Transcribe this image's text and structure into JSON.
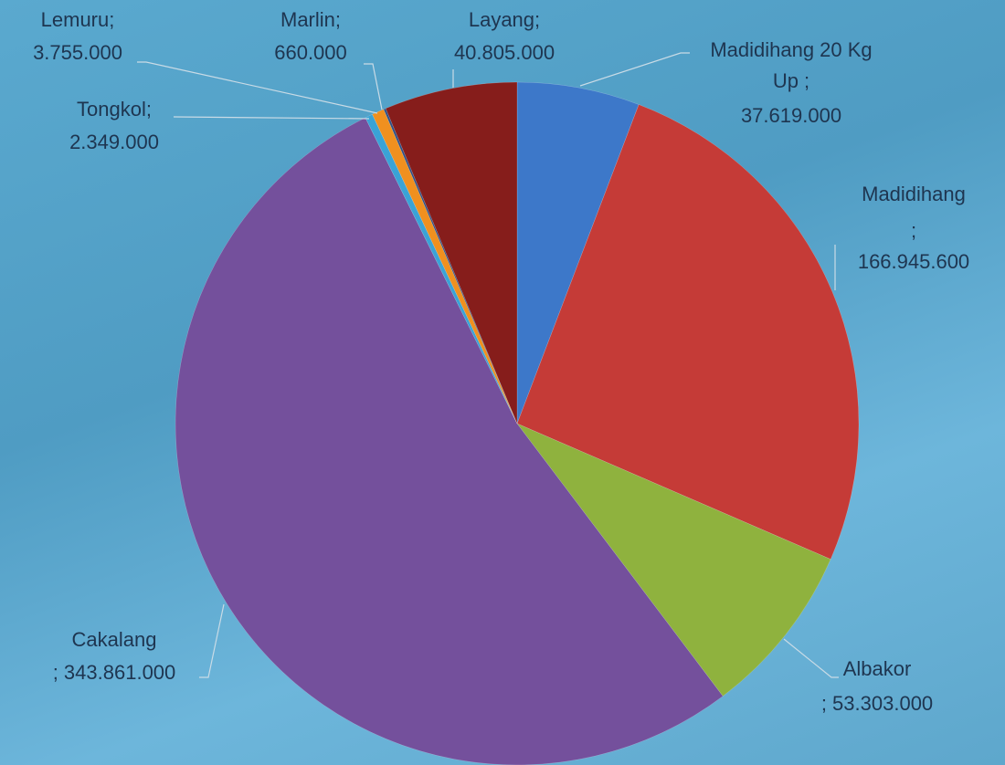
{
  "chart_data": {
    "type": "pie",
    "categories": [
      "Madidihang 20 Kg Up ;",
      "Madidihang",
      "Albakor",
      "Cakalang",
      "Tongkol;",
      "Lemuru;",
      "Marlin;",
      "Layang;"
    ],
    "values": [
      37619000,
      166945600,
      53303000,
      343861000,
      2349000,
      3755000,
      660000,
      40805000
    ],
    "value_labels": [
      "37.619.000",
      "; 166.945.600",
      "; 53.303.000",
      "; 343.861.000",
      "2.349.000",
      "3.755.000",
      "660.000",
      "40.805.000"
    ],
    "colors": [
      "#3d78c9",
      "#c53b37",
      "#8fb23e",
      "#74509c",
      "#3aa3d6",
      "#f0901f",
      "#2f4f86",
      "#861d1b"
    ]
  }
}
